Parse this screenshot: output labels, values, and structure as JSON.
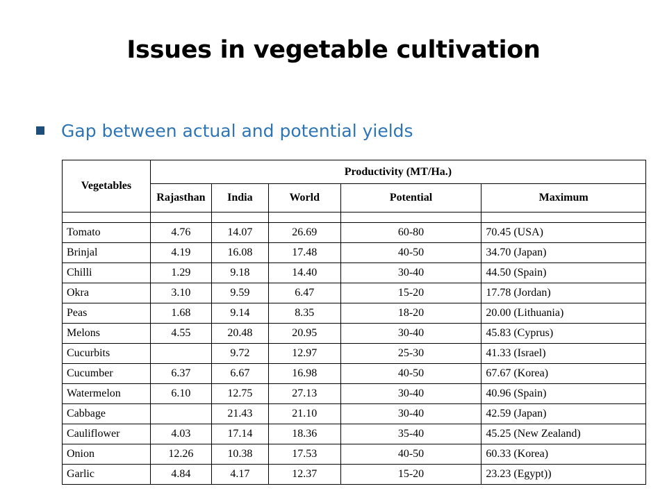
{
  "slide": {
    "title": "Issues in vegetable cultivation",
    "bullet": "Gap between actual and potential yields",
    "accent_color": "#2e75b6",
    "bullet_marker_color": "#1f4e79"
  },
  "table": {
    "header_vegetables": "Vegetables",
    "header_group": "Productivity (MT/Ha.)",
    "columns": [
      "Rajasthan",
      "India",
      "World",
      "Potential",
      "Maximum"
    ],
    "rows": [
      {
        "veg": "Tomato",
        "rajasthan": "4.76",
        "india": "14.07",
        "world": "26.69",
        "potential": "60-80",
        "maximum": "70.45 (USA)"
      },
      {
        "veg": "Brinjal",
        "rajasthan": "4.19",
        "india": "16.08",
        "world": "17.48",
        "potential": "40-50",
        "maximum": "34.70 (Japan)"
      },
      {
        "veg": "Chilli",
        "rajasthan": "1.29",
        "india": "9.18",
        "world": "14.40",
        "potential": "30-40",
        "maximum": "44.50 (Spain)"
      },
      {
        "veg": "Okra",
        "rajasthan": "3.10",
        "india": "9.59",
        "world": "6.47",
        "potential": "15-20",
        "maximum": "17.78 (Jordan)"
      },
      {
        "veg": "Peas",
        "rajasthan": "1.68",
        "india": "9.14",
        "world": "8.35",
        "potential": "18-20",
        "maximum": "20.00 (Lithuania)"
      },
      {
        "veg": "Melons",
        "rajasthan": "4.55",
        "india": "20.48",
        "world": "20.95",
        "potential": "30-40",
        "maximum": "45.83 (Cyprus)"
      },
      {
        "veg": "Cucurbits",
        "rajasthan": "",
        "india": "9.72",
        "world": "12.97",
        "potential": "25-30",
        "maximum": "41.33 (Israel)"
      },
      {
        "veg": "Cucumber",
        "rajasthan": "6.37",
        "india": "6.67",
        "world": "16.98",
        "potential": "40-50",
        "maximum": "67.67 (Korea)"
      },
      {
        "veg": "Watermelon",
        "rajasthan": "6.10",
        "india": "12.75",
        "world": "27.13",
        "potential": "30-40",
        "maximum": "40.96 (Spain)"
      },
      {
        "veg": "Cabbage",
        "rajasthan": "",
        "india": "21.43",
        "world": "21.10",
        "potential": "30-40",
        "maximum": "42.59 (Japan)"
      },
      {
        "veg": "Cauliflower",
        "rajasthan": "4.03",
        "india": "17.14",
        "world": "18.36",
        "potential": "35-40",
        "maximum": "45.25 (New Zealand)"
      },
      {
        "veg": "Onion",
        "rajasthan": "12.26",
        "india": "10.38",
        "world": "17.53",
        "potential": "40-50",
        "maximum": "60.33 (Korea)"
      },
      {
        "veg": "Garlic",
        "rajasthan": "4.84",
        "india": "4.17",
        "world": "12.37",
        "potential": "15-20",
        "maximum": "23.23 (Egypt))"
      }
    ]
  }
}
